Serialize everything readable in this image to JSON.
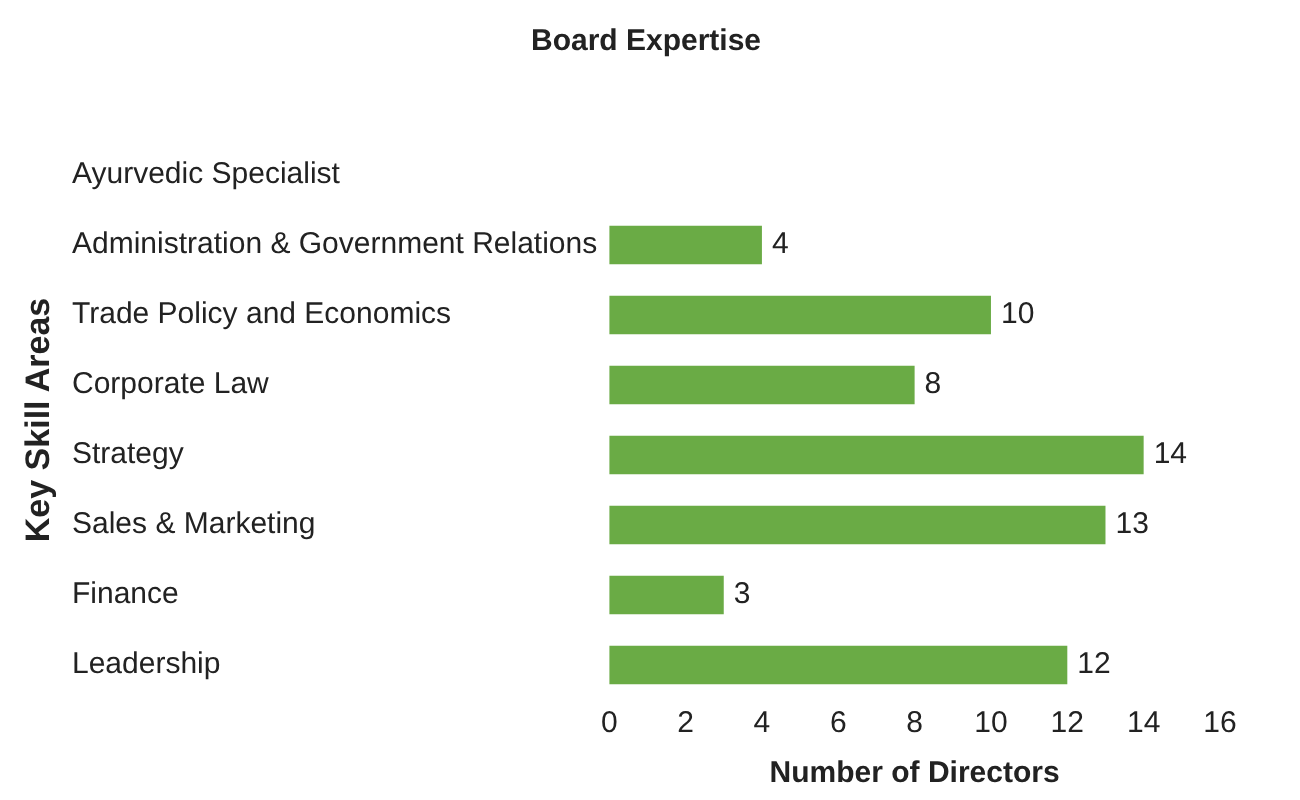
{
  "chart_data": {
    "type": "bar",
    "orientation": "horizontal",
    "title": "Board Expertise",
    "xlabel": "Number of Directors",
    "ylabel": "Key Skill Areas",
    "categories": [
      "Ayurvedic Specialist",
      "Administration & Government Relations",
      "Trade Policy and Economics",
      "Corporate Law",
      "Strategy",
      "Sales & Marketing",
      "Finance",
      "Leadership"
    ],
    "values": [
      null,
      4,
      10,
      8,
      14,
      13,
      3,
      12
    ],
    "color": "#6aab45",
    "xlim": [
      0,
      16
    ],
    "xticks": [
      0,
      2,
      4,
      6,
      8,
      10,
      12,
      14,
      16
    ],
    "grid": false,
    "legend": false,
    "data_labels": true
  }
}
